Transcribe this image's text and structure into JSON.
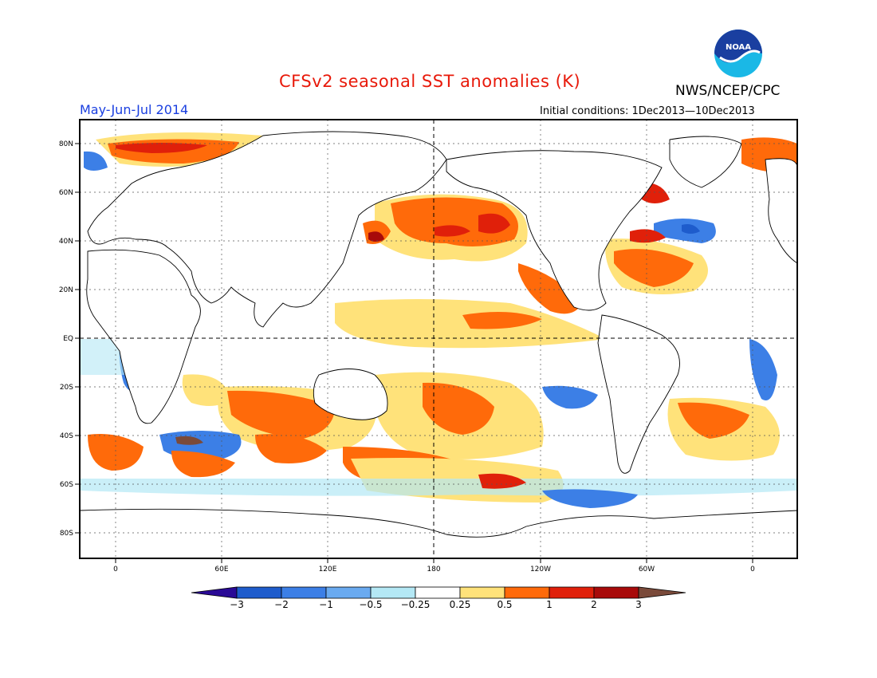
{
  "title": "CFSv2 seasonal SST anomalies (K)",
  "period": "May-Jun-Jul 2014",
  "agency": "NWS/NCEP/CPC",
  "initial_conditions": "Initial conditions: 1Dec2013—10Dec2013",
  "logo": {
    "text": "NOAA",
    "icon": "noaa-logo"
  },
  "map": {
    "lat_labels": [
      "80N",
      "60N",
      "40N",
      "20N",
      "EQ",
      "20S",
      "40S",
      "60S",
      "80S"
    ],
    "lon_labels": [
      "0",
      "60E",
      "120E",
      "180",
      "120W",
      "60W",
      "0"
    ]
  },
  "colorbar": {
    "labels": [
      "-3",
      "-2",
      "-1",
      "-0.5",
      "-0.25",
      "0.25",
      "0.5",
      "1",
      "2",
      "3"
    ],
    "colors": [
      "#2a0a96",
      "#1e5ccc",
      "#3c7fe6",
      "#6aaaf0",
      "#b4e8f5",
      "#ffffff",
      "#ffe27a",
      "#ff6a0a",
      "#e0200a",
      "#a80a0a",
      "#7a4a3a"
    ]
  }
}
